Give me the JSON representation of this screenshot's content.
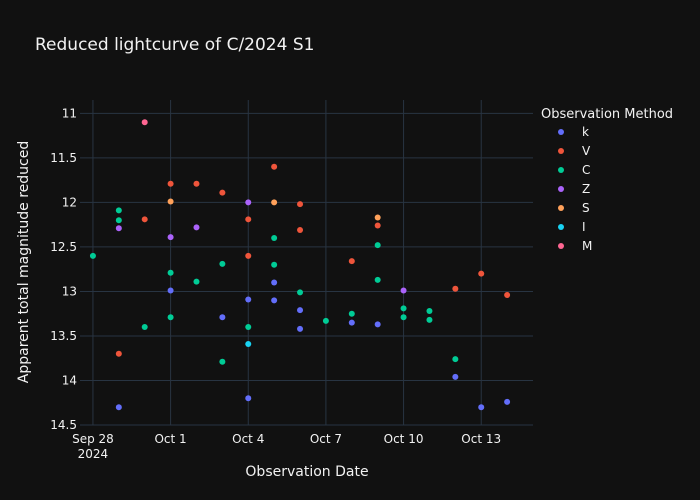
{
  "chart_data": {
    "type": "scatter",
    "title": "Reduced lightcurve of C/2024 S1",
    "xlabel": "Observation Date",
    "ylabel": "Apparent total magnitude reduced",
    "xlim": [
      "2024-09-27T12:00",
      "2024-10-15T00:00"
    ],
    "ylim": [
      14.5,
      10.85
    ],
    "y_reversed": true,
    "x_ticks": [
      {
        "date": "2024-09-28",
        "label": "Sep 28",
        "sublabel": "2024"
      },
      {
        "date": "2024-10-01",
        "label": "Oct 1"
      },
      {
        "date": "2024-10-04",
        "label": "Oct 4"
      },
      {
        "date": "2024-10-07",
        "label": "Oct 7"
      },
      {
        "date": "2024-10-10",
        "label": "Oct 10"
      },
      {
        "date": "2024-10-13",
        "label": "Oct 13"
      }
    ],
    "y_ticks": [
      {
        "value": 11,
        "label": "11"
      },
      {
        "value": 11.5,
        "label": "11.5"
      },
      {
        "value": 12,
        "label": "12"
      },
      {
        "value": 12.5,
        "label": "12.5"
      },
      {
        "value": 13,
        "label": "13"
      },
      {
        "value": 13.5,
        "label": "13.5"
      },
      {
        "value": 14,
        "label": "14"
      },
      {
        "value": 14.5,
        "label": "14.5"
      }
    ],
    "grid": true,
    "legend": {
      "title": "Observation Method",
      "position": "right"
    },
    "series": [
      {
        "name": "k",
        "color": "#636efa",
        "points": [
          {
            "x": "2024-09-29",
            "y": 14.3
          },
          {
            "x": "2024-10-01",
            "y": 12.99
          },
          {
            "x": "2024-10-03",
            "y": 13.29
          },
          {
            "x": "2024-10-04",
            "y": 13.09
          },
          {
            "x": "2024-10-04",
            "y": 14.2
          },
          {
            "x": "2024-10-05",
            "y": 12.9
          },
          {
            "x": "2024-10-05",
            "y": 13.1
          },
          {
            "x": "2024-10-06",
            "y": 13.21
          },
          {
            "x": "2024-10-06",
            "y": 13.42
          },
          {
            "x": "2024-10-08",
            "y": 13.35
          },
          {
            "x": "2024-10-09",
            "y": 13.37
          },
          {
            "x": "2024-10-12",
            "y": 13.96
          },
          {
            "x": "2024-10-13",
            "y": 14.3
          },
          {
            "x": "2024-10-14",
            "y": 14.24
          }
        ]
      },
      {
        "name": "V",
        "color": "#ef553b",
        "points": [
          {
            "x": "2024-09-29",
            "y": 13.7
          },
          {
            "x": "2024-09-30",
            "y": 12.19
          },
          {
            "x": "2024-10-01",
            "y": 11.79
          },
          {
            "x": "2024-10-02",
            "y": 11.79
          },
          {
            "x": "2024-10-03",
            "y": 11.89
          },
          {
            "x": "2024-10-04",
            "y": 12.19
          },
          {
            "x": "2024-10-04",
            "y": 12.6
          },
          {
            "x": "2024-10-05",
            "y": 11.6
          },
          {
            "x": "2024-10-06",
            "y": 12.02
          },
          {
            "x": "2024-10-06",
            "y": 12.31
          },
          {
            "x": "2024-10-08",
            "y": 12.66
          },
          {
            "x": "2024-10-09",
            "y": 12.26
          },
          {
            "x": "2024-10-12",
            "y": 12.97
          },
          {
            "x": "2024-10-13",
            "y": 12.8
          },
          {
            "x": "2024-10-14",
            "y": 13.04
          }
        ]
      },
      {
        "name": "C",
        "color": "#00cc96",
        "points": [
          {
            "x": "2024-09-28",
            "y": 12.6
          },
          {
            "x": "2024-09-29",
            "y": 12.09
          },
          {
            "x": "2024-09-29",
            "y": 12.2
          },
          {
            "x": "2024-09-30",
            "y": 13.4
          },
          {
            "x": "2024-10-01",
            "y": 12.79
          },
          {
            "x": "2024-10-01",
            "y": 13.29
          },
          {
            "x": "2024-10-02",
            "y": 12.89
          },
          {
            "x": "2024-10-03",
            "y": 12.69
          },
          {
            "x": "2024-10-03",
            "y": 13.79
          },
          {
            "x": "2024-10-04",
            "y": 13.4
          },
          {
            "x": "2024-10-05",
            "y": 12.4
          },
          {
            "x": "2024-10-05",
            "y": 12.7
          },
          {
            "x": "2024-10-06",
            "y": 13.01
          },
          {
            "x": "2024-10-07",
            "y": 13.33
          },
          {
            "x": "2024-10-08",
            "y": 13.25
          },
          {
            "x": "2024-10-09",
            "y": 12.48
          },
          {
            "x": "2024-10-09",
            "y": 12.87
          },
          {
            "x": "2024-10-10",
            "y": 13.19
          },
          {
            "x": "2024-10-10",
            "y": 13.29
          },
          {
            "x": "2024-10-11",
            "y": 13.22
          },
          {
            "x": "2024-10-11",
            "y": 13.32
          },
          {
            "x": "2024-10-12",
            "y": 13.76
          }
        ]
      },
      {
        "name": "Z",
        "color": "#ab63fa",
        "points": [
          {
            "x": "2024-09-29",
            "y": 12.29
          },
          {
            "x": "2024-10-01",
            "y": 12.39
          },
          {
            "x": "2024-10-02",
            "y": 12.28
          },
          {
            "x": "2024-10-04",
            "y": 12.0
          },
          {
            "x": "2024-10-10",
            "y": 12.99
          }
        ]
      },
      {
        "name": "S",
        "color": "#ffa15a",
        "points": [
          {
            "x": "2024-10-01",
            "y": 11.99
          },
          {
            "x": "2024-10-05",
            "y": 12.0
          },
          {
            "x": "2024-10-09",
            "y": 12.17
          }
        ]
      },
      {
        "name": "I",
        "color": "#19d3f3",
        "points": [
          {
            "x": "2024-10-04",
            "y": 13.59
          }
        ]
      },
      {
        "name": "M",
        "color": "#ff6692",
        "points": [
          {
            "x": "2024-09-30",
            "y": 11.1
          }
        ]
      }
    ]
  }
}
